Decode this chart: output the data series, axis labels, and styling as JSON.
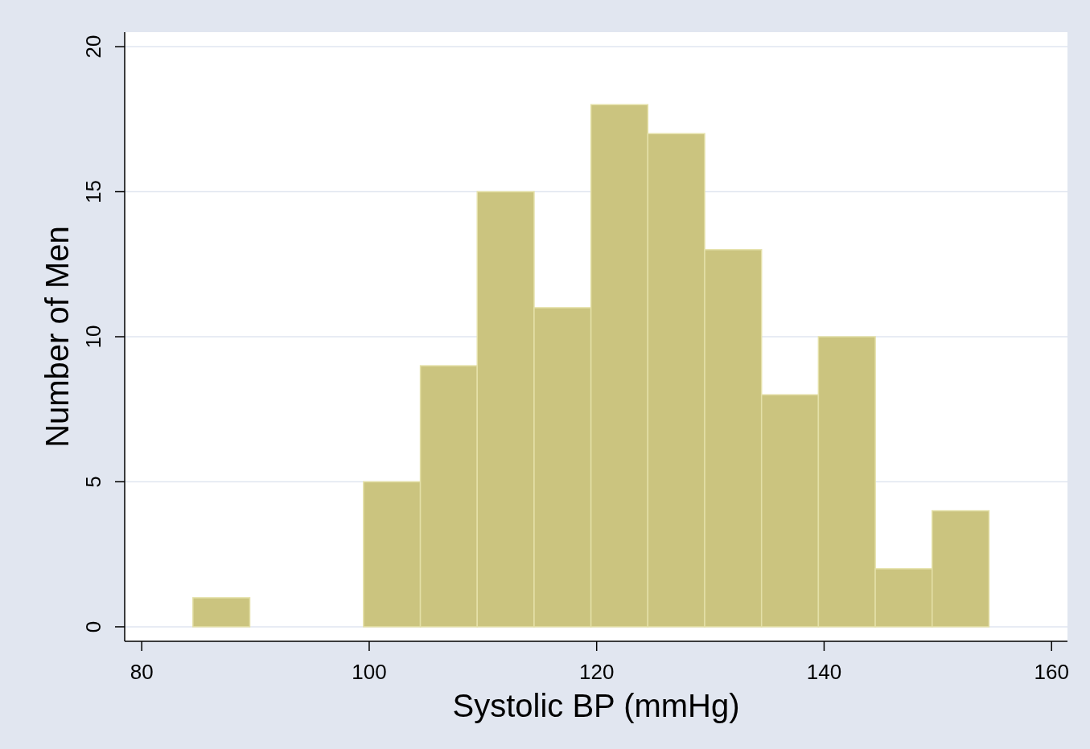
{
  "chart_data": {
    "type": "histogram",
    "xlabel": "Systolic BP (mmHg)",
    "ylabel": "Number of Men",
    "bins": [
      84.5,
      89.5,
      94.5,
      99.5,
      104.5,
      109.5,
      114.5,
      119.5,
      124.5,
      129.5,
      134.5,
      139.5,
      144.5,
      149.5,
      154.5
    ],
    "values": [
      1,
      0,
      0,
      5,
      9,
      15,
      11,
      18,
      17,
      13,
      8,
      10,
      2,
      4
    ],
    "color": "#cbc47f",
    "xlim": [
      78.5,
      161.4
    ],
    "xticks": [
      80,
      100,
      120,
      140,
      160
    ],
    "ylim": [
      -0.5,
      20.5
    ],
    "yticks": [
      0,
      5,
      10,
      15,
      20
    ],
    "grid": "y"
  }
}
